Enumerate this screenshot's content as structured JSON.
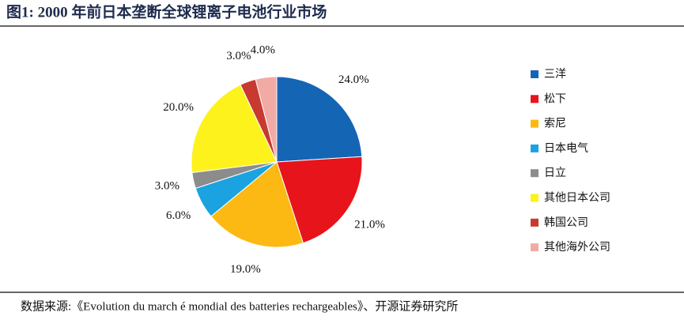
{
  "chart_data": {
    "type": "pie",
    "title": "图1: 2000 年前日本垄断全球锂离子电池行业市场",
    "categories": [
      "三洋",
      "松下",
      "索尼",
      "日本电气",
      "日立",
      "其他日本公司",
      "韩国公司",
      "其他海外公司"
    ],
    "values": [
      24,
      21,
      19,
      6,
      3,
      20,
      3,
      4
    ],
    "value_labels": [
      "24.0%",
      "21.0%",
      "19.0%",
      "6.0%",
      "3.0%",
      "20.0%",
      "3.0%",
      "4.0%"
    ],
    "colors": [
      "#1565b5",
      "#e8141b",
      "#fdb913",
      "#1aa3e0",
      "#8c8c8c",
      "#fdf21b",
      "#c8392f",
      "#f2aaa5"
    ],
    "source": "数据来源:《Evolution du march é mondial des batteries rechargeables》、开源证券研究所"
  }
}
